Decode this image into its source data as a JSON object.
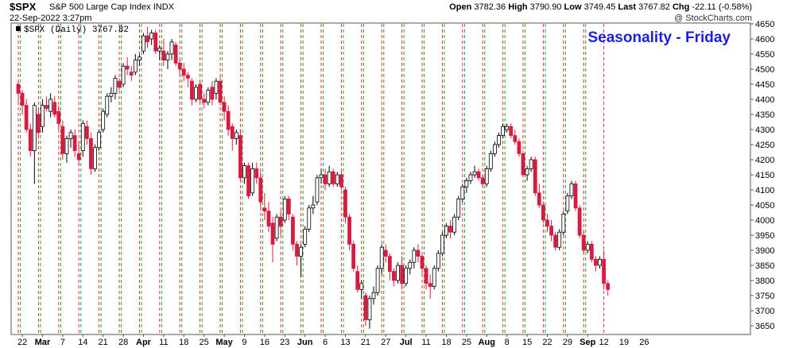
{
  "header": {
    "symbol": "$SPX",
    "name": "S&P 500 Large Cap Index",
    "exchange": "INDX",
    "open_label": "Open",
    "open": "3782.36",
    "high_label": "High",
    "high": "3790.90",
    "low_label": "Low",
    "low": "3749.45",
    "last_label": "Last",
    "last": "3767.82",
    "chg_label": "Chg",
    "chg": "-22.11 (-0.58%)",
    "date": "22-Sep-2022 3:27pm",
    "credit": "@ StockCharts.com"
  },
  "chart_data": {
    "type": "candlestick",
    "title": "Seasonality - Friday",
    "series_label": "$SPX (Daily) 3767.82",
    "ylim": [
      3610,
      4670
    ],
    "yticks": [
      3650,
      3700,
      3750,
      3800,
      3850,
      3900,
      3950,
      4000,
      4050,
      4100,
      4150,
      4200,
      4250,
      4300,
      4350,
      4400,
      4450,
      4500,
      4550,
      4600,
      4650
    ],
    "grid": "vertical dashed lines: green on Mondays, red on Fridays",
    "colors": {
      "up": "#ffffff",
      "down": "#d81b40",
      "outline": "#000000",
      "monday_line": "#2a9d2a",
      "friday_line": "#e03030"
    },
    "xticks": [
      {
        "label": "22",
        "month": false
      },
      {
        "label": "Mar",
        "month": true
      },
      {
        "label": "7",
        "month": false
      },
      {
        "label": "14",
        "month": false
      },
      {
        "label": "21",
        "month": false
      },
      {
        "label": "28",
        "month": false
      },
      {
        "label": "Apr",
        "month": true
      },
      {
        "label": "11",
        "month": false
      },
      {
        "label": "18",
        "month": false
      },
      {
        "label": "25",
        "month": false
      },
      {
        "label": "May",
        "month": true
      },
      {
        "label": "9",
        "month": false
      },
      {
        "label": "16",
        "month": false
      },
      {
        "label": "23",
        "month": false
      },
      {
        "label": "Jun",
        "month": true
      },
      {
        "label": "6",
        "month": false
      },
      {
        "label": "13",
        "month": false
      },
      {
        "label": "21",
        "month": false
      },
      {
        "label": "27",
        "month": false
      },
      {
        "label": "Jul",
        "month": true
      },
      {
        "label": "11",
        "month": false
      },
      {
        "label": "18",
        "month": false
      },
      {
        "label": "25",
        "month": false
      },
      {
        "label": "Aug",
        "month": true
      },
      {
        "label": "8",
        "month": false
      },
      {
        "label": "15",
        "month": false
      },
      {
        "label": "22",
        "month": false
      },
      {
        "label": "29",
        "month": false
      },
      {
        "label": "Sep",
        "month": true
      },
      {
        "label": "12",
        "month": false
      },
      {
        "label": "19",
        "month": false
      },
      {
        "label": "26",
        "month": false
      }
    ],
    "candles": [
      [
        4450,
        4460,
        4380,
        4420,
        "F"
      ],
      [
        4420,
        4430,
        4350,
        4380,
        "M"
      ],
      [
        4380,
        4400,
        4290,
        4300,
        "T"
      ],
      [
        4300,
        4320,
        4210,
        4230,
        "W"
      ],
      [
        4230,
        4390,
        4120,
        4380,
        "T"
      ],
      [
        4350,
        4370,
        4270,
        4290,
        "F"
      ],
      [
        4310,
        4400,
        4290,
        4380,
        "M"
      ],
      [
        4380,
        4410,
        4360,
        4370,
        "T"
      ],
      [
        4360,
        4420,
        4340,
        4400,
        "W"
      ],
      [
        4390,
        4410,
        4340,
        4350,
        "T"
      ],
      [
        4360,
        4380,
        4300,
        4320,
        "F"
      ],
      [
        4310,
        4330,
        4200,
        4220,
        "M"
      ],
      [
        4220,
        4280,
        4190,
        4270,
        "T"
      ],
      [
        4270,
        4300,
        4240,
        4290,
        "W"
      ],
      [
        4280,
        4300,
        4210,
        4230,
        "T"
      ],
      [
        4220,
        4260,
        4180,
        4200,
        "F"
      ],
      [
        4230,
        4330,
        4210,
        4320,
        "M"
      ],
      [
        4310,
        4330,
        4250,
        4270,
        "T"
      ],
      [
        4270,
        4290,
        4150,
        4170,
        "W"
      ],
      [
        4170,
        4250,
        4160,
        4240,
        "T"
      ],
      [
        4240,
        4300,
        4230,
        4290,
        "F"
      ],
      [
        4300,
        4370,
        4290,
        4360,
        "M"
      ],
      [
        4350,
        4420,
        4340,
        4410,
        "T"
      ],
      [
        4410,
        4440,
        4390,
        4420,
        "W"
      ],
      [
        4420,
        4480,
        4400,
        4470,
        "T"
      ],
      [
        4460,
        4470,
        4430,
        4440,
        "F"
      ],
      [
        4450,
        4520,
        4440,
        4510,
        "M"
      ],
      [
        4510,
        4540,
        4480,
        4500,
        "T"
      ],
      [
        4490,
        4510,
        4460,
        4480,
        "W"
      ],
      [
        4490,
        4550,
        4480,
        4530,
        "T"
      ],
      [
        4530,
        4550,
        4510,
        4540,
        "F"
      ],
      [
        4560,
        4620,
        4550,
        4610,
        "M"
      ],
      [
        4610,
        4640,
        4570,
        4590,
        "T"
      ],
      [
        4600,
        4630,
        4580,
        4620,
        "W"
      ],
      [
        4620,
        4630,
        4550,
        4560,
        "T"
      ],
      [
        4560,
        4580,
        4530,
        4570,
        "F"
      ],
      [
        4560,
        4600,
        4510,
        4530,
        "M"
      ],
      [
        4530,
        4560,
        4500,
        4550,
        "T"
      ],
      [
        4550,
        4600,
        4530,
        4590,
        "W"
      ],
      [
        4580,
        4590,
        4510,
        4520,
        "T"
      ],
      [
        4520,
        4530,
        4480,
        4500,
        "F"
      ],
      [
        4500,
        4520,
        4460,
        4480,
        "M"
      ],
      [
        4480,
        4490,
        4440,
        4470,
        "T"
      ],
      [
        4460,
        4470,
        4380,
        4400,
        "W"
      ],
      [
        4400,
        4450,
        4390,
        4440,
        "T"
      ],
      [
        4450,
        4460,
        4390,
        4400,
        "F"
      ],
      [
        4400,
        4420,
        4370,
        4390,
        "M"
      ],
      [
        4390,
        4440,
        4380,
        4430,
        "T"
      ],
      [
        4440,
        4460,
        4380,
        4400,
        "W"
      ],
      [
        4420,
        4470,
        4400,
        4460,
        "T"
      ],
      [
        4460,
        4480,
        4380,
        4390,
        "F"
      ],
      [
        4390,
        4410,
        4330,
        4360,
        "M"
      ],
      [
        4360,
        4380,
        4280,
        4300,
        "T"
      ],
      [
        4310,
        4320,
        4230,
        4270,
        "W"
      ],
      [
        4270,
        4300,
        4250,
        4290,
        "T"
      ],
      [
        4280,
        4300,
        4130,
        4140,
        "F"
      ],
      [
        4140,
        4190,
        4120,
        4180,
        "M"
      ],
      [
        4180,
        4190,
        4070,
        4080,
        "T"
      ],
      [
        4090,
        4190,
        4080,
        4170,
        "W"
      ],
      [
        4170,
        4190,
        4120,
        4140,
        "T"
      ],
      [
        4140,
        4160,
        4040,
        4060,
        "F"
      ],
      [
        4040,
        4090,
        4000,
        4030,
        "M"
      ],
      [
        4030,
        4060,
        3960,
        3980,
        "T"
      ],
      [
        3990,
        4010,
        3860,
        3920,
        "W"
      ],
      [
        3940,
        4020,
        3930,
        4010,
        "T"
      ],
      [
        4010,
        4030,
        3950,
        3980,
        "F"
      ],
      [
        4000,
        4080,
        3990,
        4070,
        "M"
      ],
      [
        4070,
        4080,
        4000,
        4020,
        "T"
      ],
      [
        4010,
        4020,
        3900,
        3920,
        "W"
      ],
      [
        3920,
        3930,
        3850,
        3880,
        "T"
      ],
      [
        3880,
        3920,
        3810,
        3910,
        "F"
      ],
      [
        3920,
        3980,
        3910,
        3970,
        "M"
      ],
      [
        3970,
        4050,
        3960,
        4040,
        "T"
      ],
      [
        4040,
        4080,
        4020,
        4050,
        "W"
      ],
      [
        4060,
        4150,
        4050,
        4140,
        "T"
      ],
      [
        4140,
        4170,
        4120,
        4150,
        "F"
      ],
      [
        4150,
        4170,
        4100,
        4120,
        "M"
      ],
      [
        4120,
        4180,
        4110,
        4160,
        "T"
      ],
      [
        4160,
        4170,
        4110,
        4120,
        "W"
      ],
      [
        4120,
        4160,
        4110,
        4150,
        "T"
      ],
      [
        4150,
        4160,
        4100,
        4110,
        "F"
      ],
      [
        4100,
        4110,
        3990,
        4010,
        "M"
      ],
      [
        4010,
        4020,
        3900,
        3920,
        "T"
      ],
      [
        3920,
        3930,
        3830,
        3840,
        "W"
      ],
      [
        3830,
        3850,
        3760,
        3770,
        "T"
      ],
      [
        3770,
        3800,
        3740,
        3790,
        "F"
      ],
      [
        3750,
        3760,
        3650,
        3670,
        "M"
      ],
      [
        3670,
        3750,
        3640,
        3740,
        "T"
      ],
      [
        3740,
        3780,
        3720,
        3760,
        "W"
      ],
      [
        3760,
        3850,
        3750,
        3840,
        "T"
      ],
      [
        3840,
        3920,
        3820,
        3910,
        "F"
      ],
      [
        3900,
        3920,
        3860,
        3880,
        "M"
      ],
      [
        3880,
        3890,
        3800,
        3830,
        "T"
      ],
      [
        3830,
        3840,
        3780,
        3800,
        "W"
      ],
      [
        3800,
        3860,
        3790,
        3850,
        "T"
      ],
      [
        3850,
        3880,
        3770,
        3790,
        "F"
      ],
      [
        3790,
        3850,
        3780,
        3840,
        "M"
      ],
      [
        3840,
        3870,
        3820,
        3860,
        "T"
      ],
      [
        3860,
        3910,
        3840,
        3900,
        "W"
      ],
      [
        3900,
        3920,
        3860,
        3880,
        "T"
      ],
      [
        3880,
        3890,
        3820,
        3840,
        "F"
      ],
      [
        3840,
        3850,
        3770,
        3790,
        "M"
      ],
      [
        3790,
        3820,
        3740,
        3780,
        "T"
      ],
      [
        3780,
        3850,
        3770,
        3840,
        "W"
      ],
      [
        3840,
        3900,
        3830,
        3890,
        "T"
      ],
      [
        3890,
        3960,
        3880,
        3950,
        "F"
      ],
      [
        3950,
        3990,
        3940,
        3980,
        "M"
      ],
      [
        3980,
        4000,
        3940,
        3960,
        "T"
      ],
      [
        3960,
        4020,
        3950,
        4010,
        "W"
      ],
      [
        4010,
        4080,
        4000,
        4070,
        "T"
      ],
      [
        4070,
        4120,
        4060,
        4110,
        "F"
      ],
      [
        4110,
        4140,
        4090,
        4130,
        "M"
      ],
      [
        4130,
        4160,
        4120,
        4150,
        "T"
      ],
      [
        4150,
        4180,
        4140,
        4160,
        "W"
      ],
      [
        4160,
        4170,
        4130,
        4140,
        "T"
      ],
      [
        4140,
        4150,
        4110,
        4120,
        "F"
      ],
      [
        4120,
        4180,
        4110,
        4170,
        "M"
      ],
      [
        4170,
        4230,
        4160,
        4220,
        "T"
      ],
      [
        4220,
        4260,
        4210,
        4250,
        "W"
      ],
      [
        4250,
        4290,
        4240,
        4280,
        "T"
      ],
      [
        4280,
        4320,
        4270,
        4310,
        "F"
      ],
      [
        4300,
        4320,
        4290,
        4310,
        "M"
      ],
      [
        4310,
        4320,
        4270,
        4280,
        "T"
      ],
      [
        4280,
        4300,
        4250,
        4260,
        "W"
      ],
      [
        4260,
        4270,
        4210,
        4220,
        "T"
      ],
      [
        4220,
        4230,
        4140,
        4150,
        "F"
      ],
      [
        4150,
        4180,
        4130,
        4170,
        "M"
      ],
      [
        4170,
        4210,
        4160,
        4200,
        "T"
      ],
      [
        4200,
        4210,
        4080,
        4090,
        "W"
      ],
      [
        4090,
        4120,
        4040,
        4050,
        "T"
      ],
      [
        4050,
        4060,
        3990,
        4000,
        "F"
      ],
      [
        4000,
        4020,
        3960,
        3980,
        "M"
      ],
      [
        3980,
        4000,
        3930,
        3950,
        "T"
      ],
      [
        3950,
        3960,
        3900,
        3910,
        "W"
      ],
      [
        3910,
        3970,
        3900,
        3960,
        "T"
      ],
      [
        3960,
        4030,
        3950,
        4020,
        "F"
      ],
      [
        4030,
        4090,
        4020,
        4080,
        "M"
      ],
      [
        4080,
        4130,
        4070,
        4120,
        "T"
      ],
      [
        4120,
        4130,
        4030,
        4040,
        "W"
      ],
      [
        4040,
        4050,
        3940,
        3950,
        "T"
      ],
      [
        3950,
        3960,
        3890,
        3900,
        "F"
      ],
      [
        3900,
        3930,
        3890,
        3920,
        "M"
      ],
      [
        3920,
        3930,
        3860,
        3870,
        "T"
      ],
      [
        3870,
        3880,
        3830,
        3850,
        "W"
      ],
      [
        3850,
        3880,
        3840,
        3870,
        "T"
      ],
      [
        3870,
        3900,
        3770,
        3790,
        "F"
      ],
      [
        3790,
        3800,
        3750,
        3770,
        "T"
      ]
    ]
  }
}
